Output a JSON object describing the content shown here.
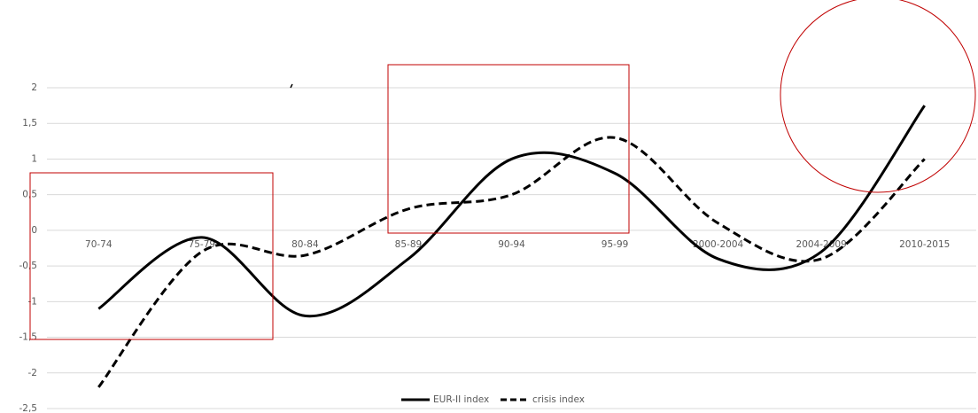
{
  "chart_data": {
    "type": "line",
    "categories": [
      "70-74",
      "75-79",
      "80-84",
      "85-89",
      "90-94",
      "95-99",
      "2000-2004",
      "2004-2009",
      "2010-2015"
    ],
    "series": [
      {
        "name": "EUR-II index",
        "color": "#000000",
        "line_style": "solid",
        "values": [
          -1.1,
          -0.1,
          -1.2,
          -0.4,
          1.0,
          0.8,
          -0.4,
          -0.3,
          1.75
        ]
      },
      {
        "name": "crisis index",
        "color": "#000000",
        "line_style": "dashed",
        "values": [
          -2.2,
          -0.3,
          -0.35,
          0.3,
          0.5,
          1.3,
          0.1,
          -0.4,
          1.0
        ]
      }
    ],
    "ylim": [
      -2.5,
      2
    ],
    "yticks": [
      {
        "value": -2.5,
        "label": "-2,5"
      },
      -2,
      {
        "value": -1.5,
        "label": "-1,5"
      },
      -1,
      {
        "value": -0.5,
        "label": "-0,5"
      },
      0,
      {
        "value": 0.5,
        "label": "0,5"
      },
      1,
      {
        "value": 1.5,
        "label": "1,5"
      },
      2
    ],
    "grid": true,
    "legend": "bottom"
  }
}
